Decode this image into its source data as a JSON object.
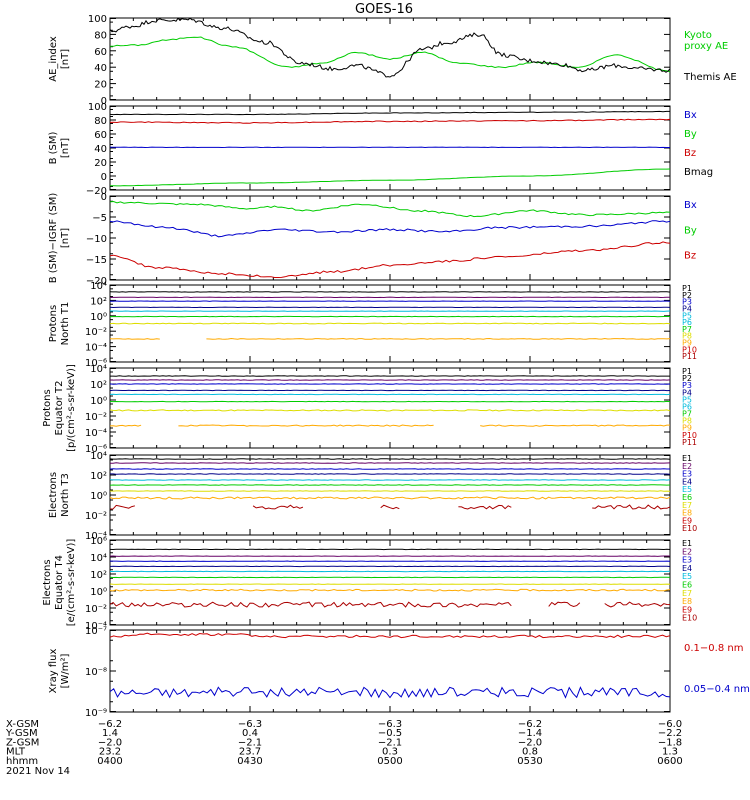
{
  "title": "GOES-16",
  "colors": {
    "black": "#000000",
    "green": "#00cc00",
    "blue": "#0000cc",
    "red": "#cc0000",
    "navy": "#000088",
    "cyan": "#00bbdd",
    "yellow": "#dddd00",
    "orange": "#ffaa00",
    "purple": "#660066",
    "darkred": "#aa0000"
  },
  "panels": [
    {
      "id": "ae",
      "ylabel": [
        "AE_index",
        "[nT]"
      ],
      "yticks": [
        "100",
        "80",
        "60",
        "40",
        "20",
        "0"
      ],
      "legend": [
        {
          "text": "Kyoto",
          "color": "green"
        },
        {
          "text": "proxy AE",
          "color": "green"
        },
        {
          "text": "Themis AE",
          "color": "black"
        }
      ]
    },
    {
      "id": "bsm",
      "ylabel": [
        "B (SM)",
        "[nT]"
      ],
      "yticks": [
        "100",
        "80",
        "60",
        "40",
        "20",
        "0",
        "−20"
      ],
      "legend": [
        {
          "text": "Bx",
          "color": "blue"
        },
        {
          "text": "By",
          "color": "green"
        },
        {
          "text": "Bz",
          "color": "red"
        },
        {
          "text": "Bmag",
          "color": "black"
        }
      ]
    },
    {
      "id": "bigrf",
      "ylabel": [
        "B (SM)−IGRF (SM)",
        "[nT]"
      ],
      "yticks": [
        "0",
        "−5",
        "−10",
        "−15",
        "−20"
      ],
      "legend": [
        {
          "text": "Bx",
          "color": "blue"
        },
        {
          "text": "By",
          "color": "green"
        },
        {
          "text": "Bz",
          "color": "red"
        }
      ]
    },
    {
      "id": "pn",
      "ylabel": [
        "Protons",
        "North T1"
      ],
      "yticks": [
        "10⁴",
        "10²",
        "10⁰",
        "10⁻²",
        "10⁻⁴",
        "10⁻⁶"
      ],
      "channels": [
        "P1",
        "P2",
        "P3",
        "P4",
        "P5",
        "P6",
        "P7",
        "P8",
        "P9",
        "P10",
        "P11"
      ]
    },
    {
      "id": "pe",
      "ylabel": [
        "Protons",
        "Equator T2",
        "[p/(cm²-s-sr-keV)]"
      ],
      "yticks": [
        "10⁴",
        "10²",
        "10⁰",
        "10⁻²",
        "10⁻⁴",
        "10⁻⁶"
      ],
      "channels": [
        "P1",
        "P2",
        "P3",
        "P4",
        "P5",
        "P6",
        "P7",
        "P8",
        "P9",
        "P10",
        "P11"
      ]
    },
    {
      "id": "en",
      "ylabel": [
        "Electrons",
        "North T3"
      ],
      "yticks": [
        "10⁴",
        "10²",
        "10⁰",
        "10⁻²",
        "10⁻⁴"
      ],
      "channels": [
        "E1",
        "E2",
        "E3",
        "E4",
        "E5",
        "E6",
        "E7",
        "E8",
        "E9",
        "E10"
      ]
    },
    {
      "id": "ee",
      "ylabel": [
        "Electrons",
        "Equator T4",
        "[e/(cm²-s-sr-keV)]"
      ],
      "yticks": [
        "10⁶",
        "10⁴",
        "10²",
        "10⁰",
        "10⁻²",
        "10⁻⁴"
      ],
      "channels": [
        "E1",
        "E2",
        "E3",
        "E4",
        "E5",
        "E6",
        "E7",
        "E8",
        "E9",
        "E10"
      ]
    },
    {
      "id": "xray",
      "ylabel": [
        "Xray flux",
        "[W/m²]"
      ],
      "yticks": [
        "10⁻⁷",
        "10⁻⁸",
        "10⁻⁹"
      ],
      "legend": [
        {
          "text": "0.1−0.8 nm",
          "color": "red"
        },
        {
          "text": "0.05−0.4 nm",
          "color": "blue"
        }
      ]
    }
  ],
  "axis_table": {
    "rows": [
      {
        "label": "X-GSM",
        "values": [
          "−6.2",
          "−6.3",
          "−6.3",
          "−6.2",
          "−6.0"
        ]
      },
      {
        "label": "Y-GSM",
        "values": [
          "1.4",
          "0.4",
          "−0.5",
          "−1.4",
          "−2.2"
        ]
      },
      {
        "label": "Z-GSM",
        "values": [
          "−2.0",
          "−2.1",
          "−2.1",
          "−2.0",
          "−1.8"
        ]
      },
      {
        "label": "MLT",
        "values": [
          "23.2",
          "23.7",
          "0.3",
          "0.8",
          "1.3"
        ]
      },
      {
        "label": "hhmm",
        "values": [
          "0400",
          "0430",
          "0500",
          "0530",
          "0600"
        ]
      }
    ],
    "date": "2021 Nov 14"
  },
  "chart_data": [
    {
      "type": "line",
      "ylabel": "AE_index [nT]",
      "ylim": [
        0,
        100
      ],
      "x": [
        "0400",
        "0415",
        "0430",
        "0445",
        "0500",
        "0515",
        "0530",
        "0545",
        "0600"
      ],
      "series": [
        {
          "name": "Kyoto proxy AE",
          "color": "green",
          "values": [
            66,
            76,
            40,
            58,
            38,
            48,
            38,
            56,
            35
          ]
        },
        {
          "name": "Themis AE",
          "color": "black",
          "values": [
            84,
            98,
            62,
            35,
            75,
            48,
            36,
            42,
            36
          ]
        }
      ]
    },
    {
      "type": "line",
      "ylabel": "B (SM) [nT]",
      "ylim": [
        -20,
        100
      ],
      "series": [
        {
          "name": "Bx",
          "color": "blue",
          "values": [
            41,
            41,
            41,
            41,
            41
          ]
        },
        {
          "name": "By",
          "color": "green",
          "values": [
            -14,
            -10,
            -6,
            0,
            10
          ]
        },
        {
          "name": "Bz",
          "color": "red",
          "values": [
            77,
            76,
            78,
            79,
            81
          ]
        },
        {
          "name": "Bmag",
          "color": "black",
          "values": [
            88,
            88,
            90,
            91,
            92
          ]
        }
      ]
    },
    {
      "type": "line",
      "ylabel": "B (SM)−IGRF (SM) [nT]",
      "ylim": [
        -20,
        0
      ],
      "series": [
        {
          "name": "Bx",
          "color": "blue",
          "values": [
            -6,
            -10,
            -8,
            -8,
            -6
          ]
        },
        {
          "name": "By",
          "color": "green",
          "values": [
            -2,
            -4,
            -3,
            -5,
            -4
          ]
        },
        {
          "name": "Bz",
          "color": "red",
          "values": [
            -14,
            -18,
            -17,
            -14,
            -11
          ]
        }
      ]
    },
    {
      "type": "line",
      "ylabel": "Protons North T1",
      "yscale": "log",
      "ylim": [
        1e-06,
        10000.0
      ]
    },
    {
      "type": "line",
      "ylabel": "Protons Equator T2 [p/(cm²-s-sr-keV)]",
      "yscale": "log",
      "ylim": [
        1e-06,
        10000.0
      ]
    },
    {
      "type": "line",
      "ylabel": "Electrons North T3",
      "yscale": "log",
      "ylim": [
        0.0001,
        10000.0
      ]
    },
    {
      "type": "line",
      "ylabel": "Electrons Equator T4 [e/(cm²-s-sr-keV)]",
      "yscale": "log",
      "ylim": [
        0.0001,
        1000000.0
      ]
    },
    {
      "type": "line",
      "ylabel": "Xray flux [W/m²]",
      "yscale": "log",
      "ylim": [
        1e-09,
        1e-07
      ],
      "series": [
        {
          "name": "0.1−0.8 nm",
          "color": "red",
          "values": [
            7e-08,
            8e-08,
            7.5e-08,
            7e-08,
            7e-08
          ]
        },
        {
          "name": "0.05−0.4 nm",
          "color": "blue",
          "values": [
            3e-09,
            3.5e-09,
            3.2e-09,
            3e-09,
            3e-09
          ]
        }
      ]
    }
  ]
}
